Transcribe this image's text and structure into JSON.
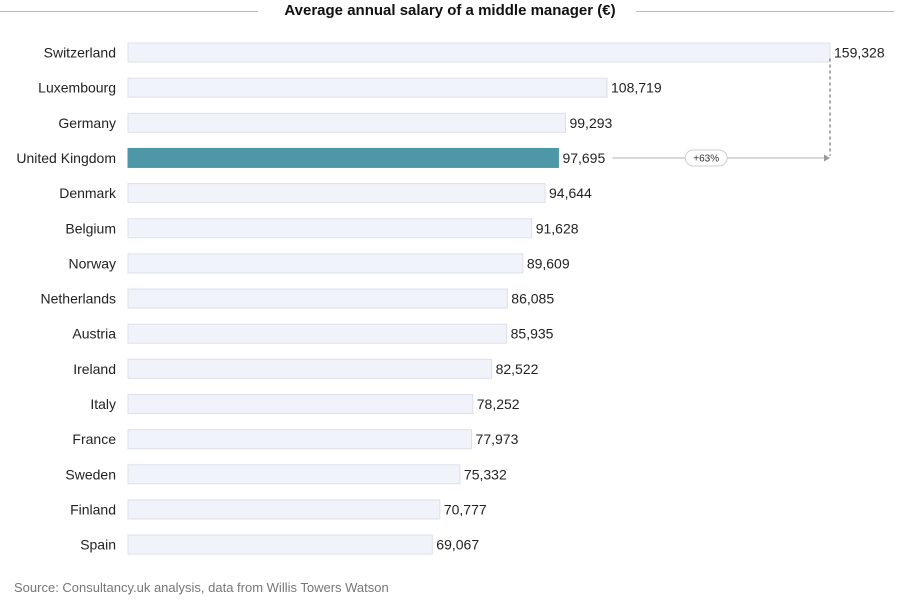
{
  "chart_data": {
    "type": "bar",
    "orientation": "horizontal",
    "title": "Average annual salary of a middle manager (€)",
    "categories": [
      "Switzerland",
      "Luxembourg",
      "Germany",
      "United Kingdom",
      "Denmark",
      "Belgium",
      "Norway",
      "Netherlands",
      "Austria",
      "Ireland",
      "Italy",
      "France",
      "Sweden",
      "Finland",
      "Spain"
    ],
    "values": [
      159328,
      108719,
      99293,
      97695,
      94644,
      91628,
      89609,
      86085,
      85935,
      82522,
      78252,
      77973,
      75332,
      70777,
      69067
    ],
    "value_labels": [
      "159,328",
      "108,719",
      "99,293",
      "97,695",
      "94,644",
      "91,628",
      "89,609",
      "86,085",
      "85,935",
      "82,522",
      "78,252",
      "77,973",
      "75,332",
      "70,777",
      "69,067"
    ],
    "highlight": "United Kingdom",
    "annotation": {
      "from": "United Kingdom",
      "to": "Switzerland",
      "label": "+63%"
    },
    "xlim": [
      0,
      159328
    ],
    "grid": false,
    "colors": {
      "bar": "#f1f3fa",
      "bar_border": "#dde0ea",
      "highlight": "#4e97a7",
      "annotation_line": "#cccccc"
    }
  },
  "source": "Source: Consultancy.uk analysis, data from Willis Towers Watson"
}
